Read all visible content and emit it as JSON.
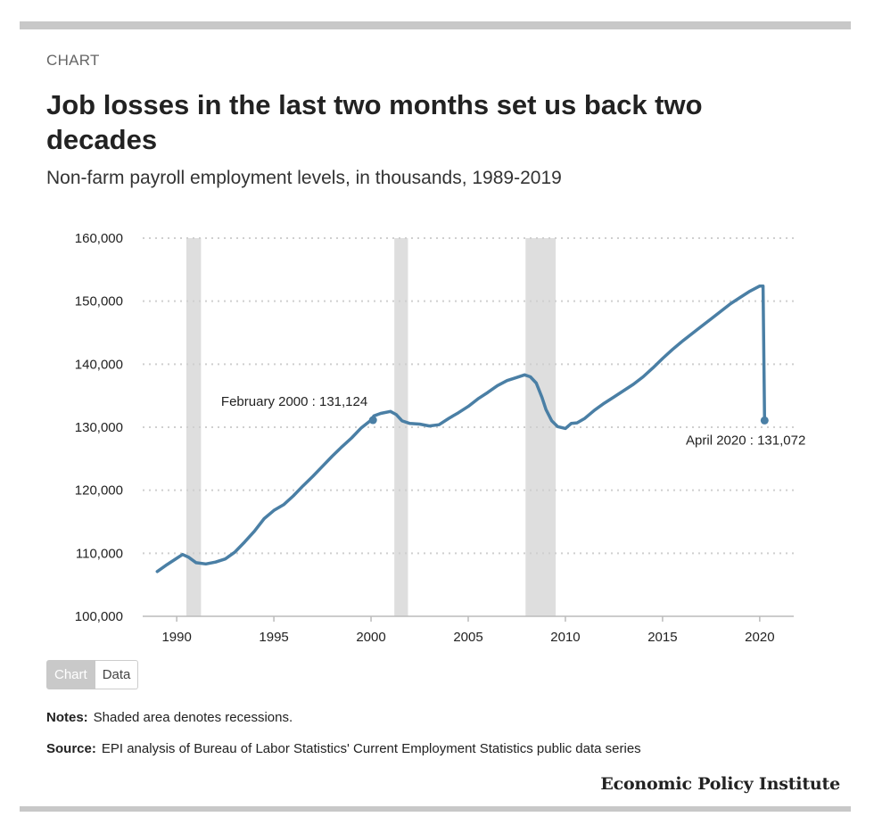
{
  "header": {
    "kicker": "CHART",
    "title": "Job losses in the last two months set us back two decades",
    "subtitle": "Non-farm payroll employment levels, in thousands, 1989-2019"
  },
  "tabs": {
    "chart_label": "Chart",
    "data_label": "Data"
  },
  "footer": {
    "notes_label": "Notes:",
    "notes_text": "Shaded area denotes recessions.",
    "source_label": "Source:",
    "source_text": "EPI analysis of Bureau of Labor Statistics' Current Employment Statistics public data series",
    "brand": "Economic Policy Institute"
  },
  "colors": {
    "line": "#4a7fa5",
    "recession": "#dedede",
    "grid": "#cfcfcf"
  },
  "chart_data": {
    "type": "line",
    "title": "Job losses in the last two months set us back two decades",
    "subtitle": "Non-farm payroll employment levels, in thousands, 1989-2019",
    "xlim": [
      1988.25,
      2021.75
    ],
    "ylim": [
      100000,
      160000
    ],
    "x_ticks": [
      1990,
      1995,
      2000,
      2005,
      2010,
      2015,
      2020
    ],
    "x_tick_labels": [
      "1990",
      "1995",
      "2000",
      "2005",
      "2010",
      "2015",
      "2020"
    ],
    "y_ticks": [
      100000,
      110000,
      120000,
      130000,
      140000,
      150000,
      160000
    ],
    "y_tick_labels": [
      "100,000",
      "110,000",
      "120,000",
      "130,000",
      "140,000",
      "150,000",
      "160,000"
    ],
    "grid": "horizontal dotted",
    "recessions": [
      [
        1990.5,
        1991.25
      ],
      [
        2001.2,
        2001.9
      ],
      [
        2007.95,
        2009.5
      ]
    ],
    "series": [
      {
        "x": [
          1989.0,
          1989.5,
          1990.0,
          1990.3,
          1990.6,
          1991.0,
          1991.5,
          1992.0,
          1992.5,
          1993.0,
          1993.5,
          1994.0,
          1994.5,
          1995.0,
          1995.5,
          1996.0,
          1996.5,
          1997.0,
          1997.5,
          1998.0,
          1998.5,
          1999.0,
          1999.5,
          2000.0,
          2000.15,
          2000.5,
          2001.0,
          2001.3,
          2001.6,
          2002.0,
          2002.5,
          2003.0,
          2003.5,
          2004.0,
          2004.5,
          2005.0,
          2005.5,
          2006.0,
          2006.5,
          2007.0,
          2007.5,
          2007.9,
          2008.2,
          2008.5,
          2008.8,
          2009.0,
          2009.3,
          2009.6,
          2010.0,
          2010.3,
          2010.6,
          2011.0,
          2011.5,
          2012.0,
          2012.5,
          2013.0,
          2013.5,
          2014.0,
          2014.5,
          2015.0,
          2015.5,
          2016.0,
          2016.5,
          2017.0,
          2017.5,
          2018.0,
          2018.5,
          2019.0,
          2019.5,
          2020.0,
          2020.17,
          2020.25
        ],
        "y": [
          107100,
          108200,
          109200,
          109800,
          109400,
          108500,
          108300,
          108600,
          109100,
          110200,
          111800,
          113500,
          115500,
          116800,
          117700,
          119100,
          120700,
          122200,
          123800,
          125400,
          126900,
          128300,
          129900,
          131124,
          131800,
          132200,
          132500,
          132000,
          131000,
          130600,
          130500,
          130200,
          130400,
          131400,
          132300,
          133300,
          134500,
          135500,
          136600,
          137400,
          137900,
          138300,
          138000,
          137000,
          134700,
          132800,
          131000,
          130100,
          129800,
          130600,
          130700,
          131400,
          132700,
          133800,
          134800,
          135800,
          136800,
          138000,
          139400,
          140900,
          142300,
          143600,
          144800,
          146000,
          147200,
          148400,
          149600,
          150600,
          151600,
          152400,
          152400,
          131072
        ]
      }
    ],
    "annotations": [
      {
        "label": "February 2000 : 131,124",
        "x": 2000.1,
        "y": 131124
      },
      {
        "label": "April 2020 : 131,072",
        "x": 2020.25,
        "y": 131072
      }
    ]
  }
}
